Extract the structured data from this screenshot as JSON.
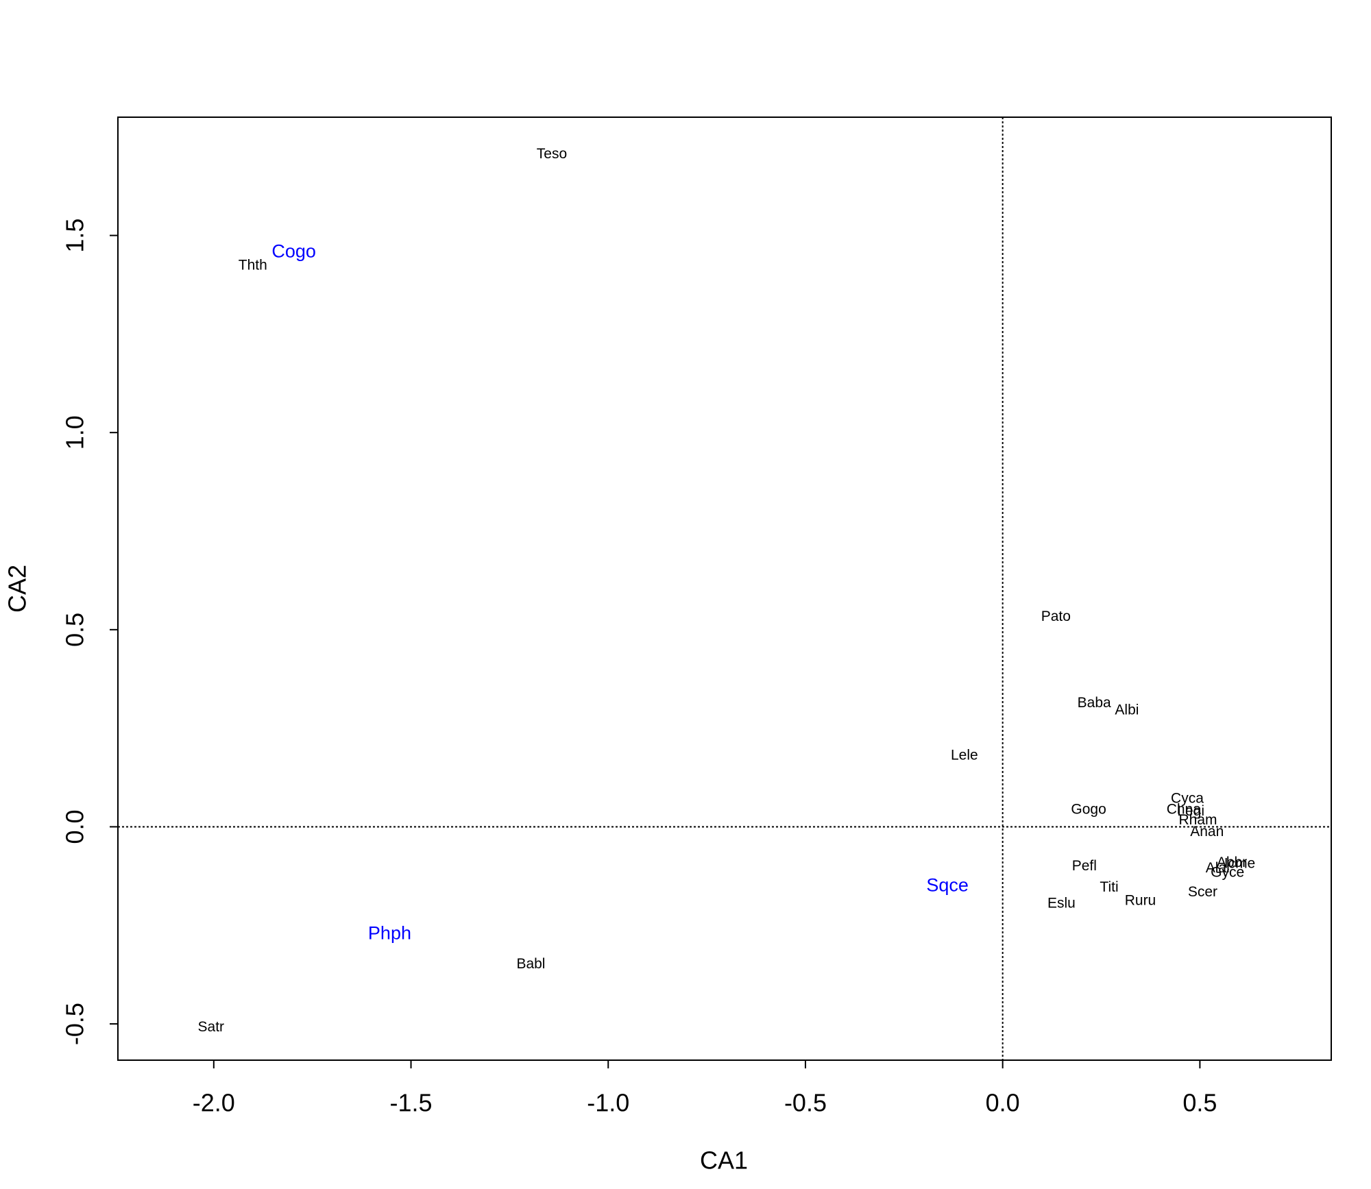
{
  "chart_data": {
    "type": "scatter",
    "xlabel": "CA1",
    "ylabel": "CA2",
    "xlim": [
      -2.243,
      0.833
    ],
    "ylim": [
      -0.592,
      1.8
    ],
    "xticks": [
      {
        "value": -2,
        "label": "-2.0"
      },
      {
        "value": -1.5,
        "label": "-1.5"
      },
      {
        "value": -1,
        "label": "-1.0"
      },
      {
        "value": -0.5,
        "label": "-0.5"
      },
      {
        "value": 0,
        "label": "0.0"
      },
      0.5
    ],
    "yticks": [
      -0.5,
      {
        "value": 0,
        "label": "0.0"
      },
      0.5,
      {
        "value": 1,
        "label": "1.0"
      },
      1.5
    ],
    "reference_lines": {
      "x": 0,
      "y": 0
    },
    "series": [
      {
        "color": "#000000",
        "labels": [
          "Teso",
          "Thth",
          "Pato",
          "Baba",
          "Albi",
          "Lele",
          "Gogo",
          "Cyca",
          "Chna",
          "Legi",
          "Rham",
          "Anan",
          "Pefl",
          "Titi",
          "Ruru",
          "Eslu",
          "Scer",
          "Alal",
          "Abbr",
          "Icme",
          "Gyce",
          "Babl",
          "Satr"
        ],
        "x": [
          -1.143,
          -1.901,
          0.135,
          0.232,
          0.315,
          -0.097,
          0.218,
          0.468,
          0.459,
          0.477,
          0.495,
          0.518,
          0.207,
          0.27,
          0.349,
          0.149,
          0.507,
          0.545,
          0.581,
          0.601,
          0.57,
          -1.196,
          -2.007
        ],
        "values": [
          1.705,
          1.423,
          0.532,
          0.313,
          0.295,
          0.18,
          0.043,
          0.07,
          0.043,
          0.038,
          0.016,
          -0.014,
          -0.101,
          -0.155,
          -0.189,
          -0.196,
          -0.167,
          -0.106,
          -0.092,
          -0.095,
          -0.117,
          -0.349,
          -0.509
        ]
      },
      {
        "color": "#0000ff",
        "labels": [
          "Cogo",
          "Sqce",
          "Phph"
        ],
        "x": [
          -1.797,
          -0.14,
          -1.554
        ],
        "values": [
          1.457,
          -0.151,
          -0.273
        ]
      }
    ]
  }
}
